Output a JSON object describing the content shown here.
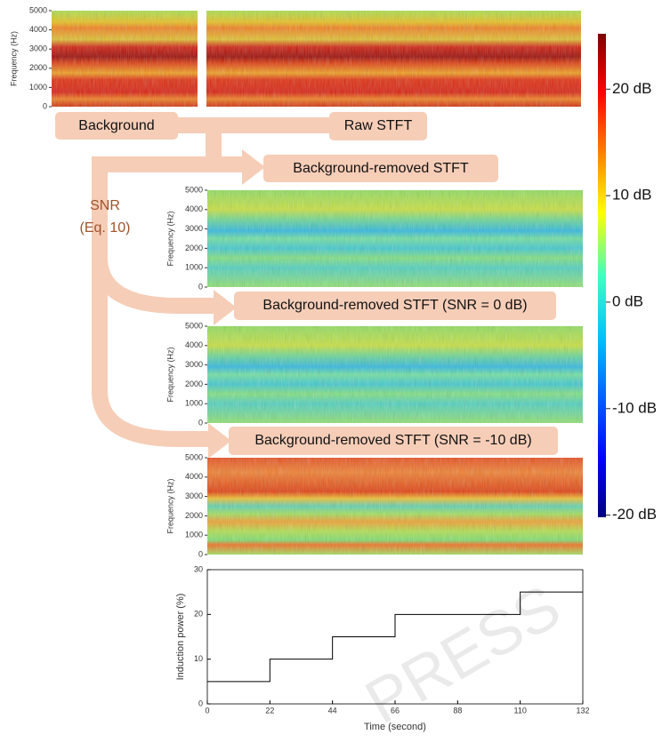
{
  "spectrogram_axis": {
    "label": "Frequency (Hz)",
    "lim": [
      0,
      5000
    ],
    "ticks": [
      0,
      1000,
      2000,
      3000,
      4000,
      5000
    ]
  },
  "flow": {
    "background": "Background",
    "raw": "Raw STFT",
    "removed": "Background-removed STFT",
    "snr0": "Background-removed STFT (SNR = 0 dB)",
    "snr10": "Background-removed STFT (SNR = -10 dB)",
    "snr": "SNR",
    "eq": "(Eq. 10)"
  },
  "colorbar": {
    "lim": [
      -20.2,
      25.2
    ],
    "ticks": [
      {
        "value": 20,
        "label": "20 dB"
      },
      {
        "value": 10,
        "label": "10 dB"
      },
      {
        "value": 0,
        "label": "0 dB"
      },
      {
        "value": -10,
        "label": "-10 dB"
      },
      {
        "value": -20,
        "label": "-20 dB"
      }
    ]
  },
  "watermark": "PRESS",
  "chart_data": {
    "type": "line",
    "ylabel": "Induction power (%)",
    "xlabel": "Time (second)",
    "x": [
      0,
      22,
      22,
      44,
      44,
      66,
      66,
      110,
      110,
      132
    ],
    "values": [
      5,
      5,
      10,
      10,
      15,
      15,
      20,
      20,
      25,
      25
    ],
    "color": "#000000",
    "xlim": [
      0,
      132
    ],
    "ylim": [
      0,
      30
    ],
    "xticks": [
      0,
      22,
      44,
      66,
      88,
      110,
      132
    ],
    "yticks": [
      0,
      10,
      20,
      30
    ]
  }
}
